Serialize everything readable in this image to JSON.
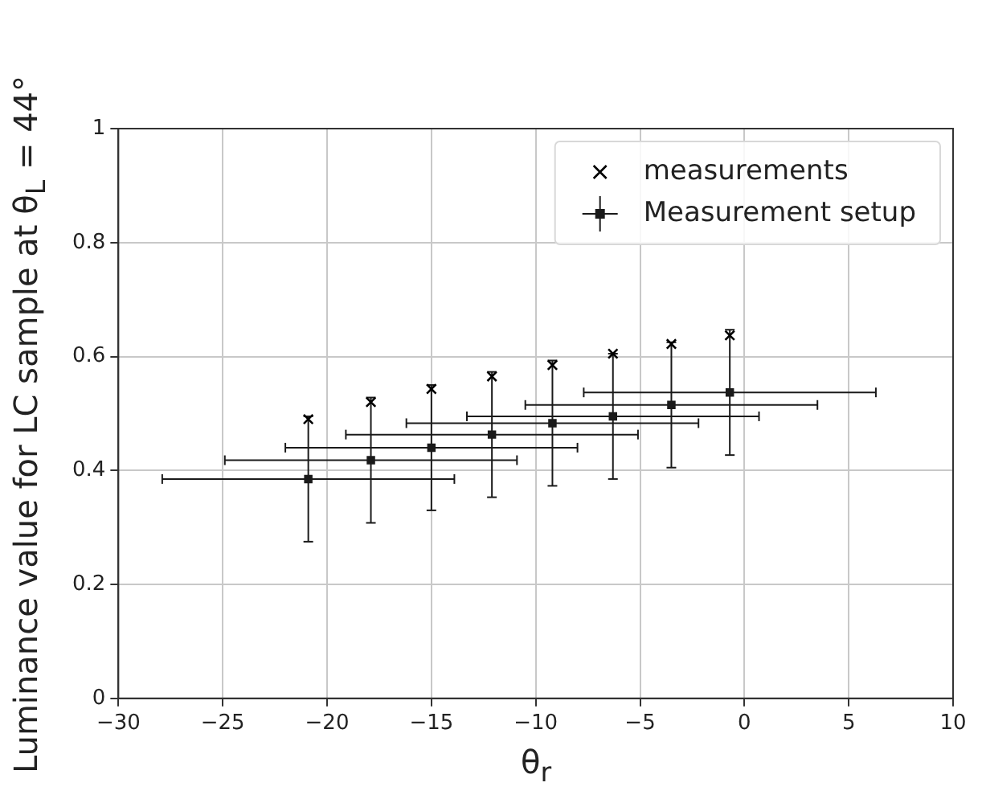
{
  "chart_data": {
    "type": "scatter",
    "xlabel": "θ$_{r}$",
    "ylabel": "Luminance value for LC sample at θ$_{L}$ = 44°",
    "xlim": [
      -30,
      10
    ],
    "xticks": [
      -30,
      -25,
      -20,
      -15,
      -10,
      -5,
      0,
      5,
      10
    ],
    "ylim": [
      0,
      1
    ],
    "yticks": [
      0,
      0.2,
      0.4,
      0.6,
      0.8,
      1
    ],
    "grid": true,
    "legend": "top right",
    "series": [
      {
        "name": "measurements",
        "color": "#000000",
        "marker": "cross",
        "x": [
          -20.9,
          -17.9,
          -15,
          -12.1,
          -9.2,
          -6.3,
          -3.5,
          -0.7
        ],
        "values": [
          0.49,
          0.52,
          0.543,
          0.565,
          0.585,
          0.605,
          0.622,
          0.637
        ]
      },
      {
        "name": "Measurement setup",
        "color": "#1a1a1a",
        "marker": "square",
        "x": [
          -20.9,
          -17.9,
          -15,
          -12.1,
          -9.2,
          -6.3,
          -3.5,
          -0.7
        ],
        "values": [
          0.385,
          0.418,
          0.44,
          0.463,
          0.483,
          0.495,
          0.515,
          0.537
        ],
        "errors": [
          0.11,
          0.11,
          0.11,
          0.11,
          0.11,
          0.11,
          0.11,
          0.11
        ],
        "xerrors": [
          7,
          7,
          7,
          7,
          7,
          7,
          7,
          7
        ]
      }
    ]
  }
}
